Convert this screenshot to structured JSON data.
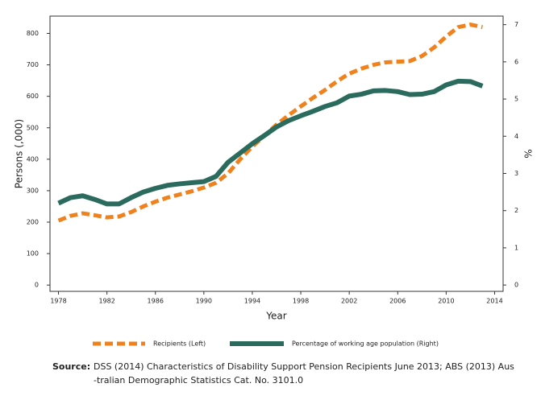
{
  "chart_data": {
    "type": "line",
    "x": [
      1978,
      1979,
      1980,
      1981,
      1982,
      1983,
      1984,
      1985,
      1986,
      1987,
      1988,
      1989,
      1990,
      1991,
      1992,
      1993,
      1994,
      1995,
      1996,
      1997,
      1998,
      1999,
      2000,
      2001,
      2002,
      2003,
      2004,
      2005,
      2006,
      2007,
      2008,
      2009,
      2010,
      2011,
      2012,
      2013
    ],
    "series": [
      {
        "name": "Recipients (Left)",
        "color": "#f0821e",
        "dashed": true,
        "values": [
          205,
          220,
          228,
          222,
          215,
          218,
          232,
          250,
          265,
          278,
          288,
          298,
          310,
          325,
          355,
          400,
          440,
          475,
          510,
          540,
          568,
          595,
          620,
          648,
          672,
          688,
          700,
          708,
          710,
          712,
          728,
          755,
          790,
          820,
          828,
          820
        ]
      },
      {
        "name": "Percentage of working age population (Right)",
        "color": "#2a6b5e",
        "axis": "y2",
        "dashed": false,
        "values": [
          2.2,
          2.35,
          2.4,
          2.3,
          2.18,
          2.18,
          2.35,
          2.5,
          2.6,
          2.68,
          2.72,
          2.75,
          2.78,
          2.92,
          3.3,
          3.55,
          3.8,
          4.02,
          4.25,
          4.42,
          4.55,
          4.67,
          4.8,
          4.9,
          5.08,
          5.13,
          5.22,
          5.23,
          5.2,
          5.12,
          5.13,
          5.2,
          5.38,
          5.48,
          5.47,
          5.35
        ]
      }
    ],
    "xlabel": "Year",
    "ylabel": "Persons (,000)",
    "y2label": "%",
    "xlim": [
      1977.3,
      2014.7
    ],
    "xticks": [
      1978,
      1982,
      1986,
      1990,
      1994,
      1998,
      2002,
      2006,
      2010,
      2014
    ],
    "ylim": [
      -20,
      855
    ],
    "yticks": [
      0,
      100,
      200,
      300,
      400,
      500,
      600,
      700,
      800
    ],
    "y2lim": [
      -0.17,
      7.23
    ],
    "y2ticks": [
      0,
      1,
      2,
      3,
      4,
      5,
      6,
      7
    ],
    "source_label": "Source:",
    "source_lines": [
      "DSS (2014) Characteristics of Disability Support Pension Recipients June 2013; ABS (2013) Aus",
      "-tralian Demographic Statistics Cat. No. 3101.0"
    ]
  }
}
